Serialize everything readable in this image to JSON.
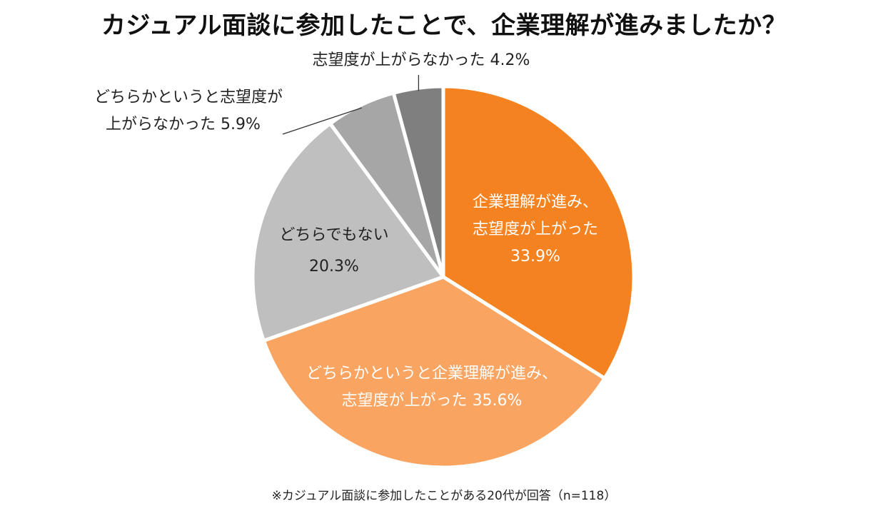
{
  "title": "カジュアル面談に参加したことで、企業理解が進みましたか？",
  "footnote": "※カジュアル面談に参加したことがある20代が回答（n=118）",
  "chart_data": {
    "type": "pie",
    "title": "カジュアル面談に参加したことで、企業理解が進みましたか？",
    "start": "12 o'clock, clockwise",
    "slices": [
      {
        "name": "企業理解が進み、志望度が上がった",
        "value": 33.9,
        "color": "#F58220",
        "label_lines": [
          "企業理解が進み、",
          "志望度が上がった"
        ],
        "value_label": "33.9%"
      },
      {
        "name": "どちらかというと企業理解が進み、志望度が上がった",
        "value": 35.6,
        "color": "#F9A461",
        "label_lines": [
          "どちらかというと企業理解が進み、",
          "志望度が上がった"
        ],
        "value_label": "35.6%"
      },
      {
        "name": "どちらでもない",
        "value": 20.3,
        "color": "#BFBFBF",
        "label_lines": [
          "どちらでもない"
        ],
        "value_label": "20.3%"
      },
      {
        "name": "どちらかというと志望度が上がらなかった",
        "value": 5.9,
        "color": "#A6A6A6",
        "label_lines": [
          "どちらかというと志望度が",
          "上がらなかった"
        ],
        "value_label": "5.9%"
      },
      {
        "name": "志望度が上がらなかった",
        "value": 4.2,
        "color": "#7F7F7F",
        "label_lines": [
          "志望度が上がらなかった"
        ],
        "value_label": "4.2%"
      }
    ]
  }
}
